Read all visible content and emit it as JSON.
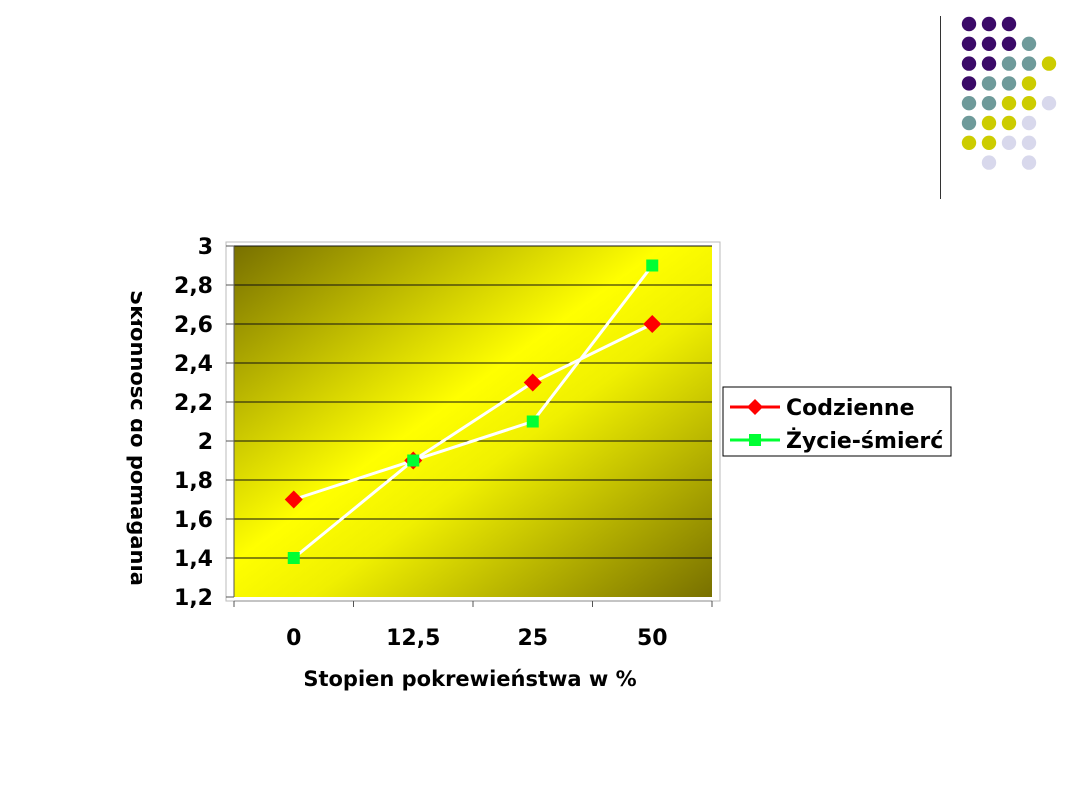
{
  "decoration": {
    "dot_colors": {
      "a": "#3b0a68",
      "b": "#6e9a9a",
      "c": "#cccc00",
      "d": "#d8d8ec"
    },
    "dot_pattern": [
      "aaa",
      "aaab",
      "aabbc",
      "abbc",
      "bbccd",
      "bccd",
      "ccdd",
      ".d.d"
    ]
  },
  "chart_data": {
    "type": "line",
    "categories": [
      "0",
      "12,5",
      "25",
      "50"
    ],
    "series": [
      {
        "name": "Codzienne",
        "values": [
          1.7,
          1.9,
          2.3,
          2.6
        ],
        "color": "#ff0000",
        "marker": "diamond"
      },
      {
        "name": "Życie-śmierć",
        "values": [
          1.4,
          1.9,
          2.1,
          2.9
        ],
        "color": "#00ff33",
        "marker": "square"
      }
    ],
    "line_color": "#ffffff",
    "ylim": [
      1.2,
      3
    ],
    "yticks": [
      "1,2",
      "1,4",
      "1,6",
      "1,8",
      "2",
      "2,2",
      "2,4",
      "2,6",
      "2,8",
      "3"
    ],
    "xlabel": "Stopien pokrewieństwa w %",
    "ylabel": "Skłonność do pomagania",
    "legend_position": "right",
    "grid": true,
    "plot_colors": {
      "dark": "#787000",
      "bright": "#ffff00",
      "mid": "#f0f000"
    }
  }
}
